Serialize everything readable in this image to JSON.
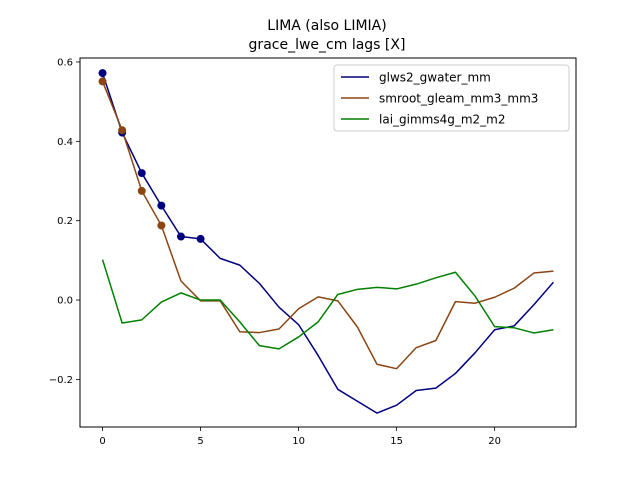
{
  "chart_data": {
    "type": "line",
    "title": "LIMA (also LIMIA)",
    "subtitle": "grace_lwe_cm lags [X]",
    "xlabel": "",
    "ylabel": "",
    "xlim": [
      -1.15,
      24.15
    ],
    "ylim": [
      -0.32,
      0.61
    ],
    "xticks": [
      0,
      5,
      10,
      15,
      20
    ],
    "yticks": [
      -0.2,
      0.0,
      0.2,
      0.4,
      0.6
    ],
    "xtick_labels": [
      "0",
      "5",
      "10",
      "15",
      "20"
    ],
    "ytick_labels": [
      "−0.2",
      "0.0",
      "0.2",
      "0.4",
      "0.6"
    ],
    "grid": false,
    "legend_position": "top-right",
    "x": [
      0,
      1,
      2,
      3,
      4,
      5,
      6,
      7,
      8,
      9,
      10,
      11,
      12,
      13,
      14,
      15,
      16,
      17,
      18,
      19,
      20,
      21,
      22,
      23
    ],
    "series": [
      {
        "name": "glws2_gwater_mm",
        "color": "#00007f",
        "values": [
          0.572,
          0.422,
          0.32,
          0.238,
          0.16,
          0.154,
          0.105,
          0.088,
          0.042,
          -0.018,
          -0.062,
          -0.14,
          -0.225,
          -0.255,
          -0.285,
          -0.265,
          -0.228,
          -0.222,
          -0.185,
          -0.133,
          -0.075,
          -0.065,
          -0.012,
          0.045
        ],
        "markers": [
          0,
          1,
          2,
          3,
          4,
          5
        ]
      },
      {
        "name": "smroot_gleam_mm3_mm3",
        "color": "#8b4513",
        "values": [
          0.551,
          0.428,
          0.275,
          0.188,
          0.048,
          -0.002,
          -0.002,
          -0.08,
          -0.082,
          -0.073,
          -0.022,
          0.008,
          -0.002,
          -0.068,
          -0.162,
          -0.173,
          -0.12,
          -0.102,
          -0.004,
          -0.008,
          0.007,
          0.03,
          0.068,
          0.073
        ],
        "markers": [
          0,
          1,
          2,
          3
        ]
      },
      {
        "name": "lai_gimms4g_m2_m2",
        "color": "#008000",
        "values": [
          0.102,
          -0.058,
          -0.05,
          -0.005,
          0.018,
          0.0,
          0.0,
          -0.055,
          -0.115,
          -0.123,
          -0.093,
          -0.055,
          0.014,
          0.027,
          0.032,
          0.028,
          0.04,
          0.056,
          0.07,
          0.01,
          -0.067,
          -0.07,
          -0.083,
          -0.075
        ],
        "markers": []
      }
    ]
  }
}
